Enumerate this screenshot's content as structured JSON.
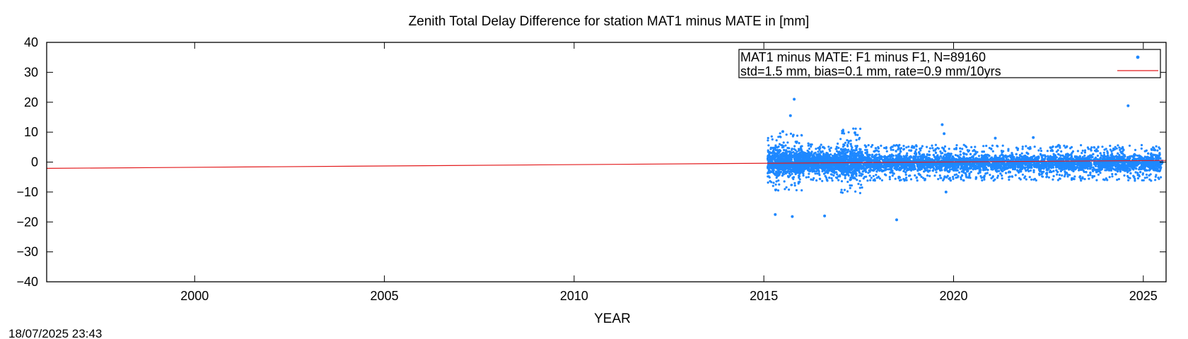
{
  "chart_data": {
    "type": "scatter",
    "title": "Zenith Total Delay Difference for station MAT1 minus MATE in [mm]",
    "xlabel": "YEAR",
    "ylabel": "",
    "xlim": [
      1996.1,
      2025.6
    ],
    "ylim": [
      -40,
      40
    ],
    "x_ticks": [
      2000,
      2005,
      2010,
      2015,
      2020,
      2025
    ],
    "y_ticks": [
      -40,
      -30,
      -20,
      -10,
      0,
      10,
      20,
      30,
      40
    ],
    "x_tick_labels": [
      "2000",
      "2005",
      "2010",
      "2015",
      "2020",
      "2025"
    ],
    "y_tick_labels": [
      "−40",
      "−30",
      "−20",
      "−10",
      "0",
      "10",
      "20",
      "30",
      "40"
    ],
    "grid": false,
    "legend_position": "top-right",
    "series": [
      {
        "name": "MAT1 minus MATE: F1 minus F1, N=89160",
        "marker": "point",
        "color": "#1e88ff",
        "x_range": [
          2015.1,
          2025.5
        ],
        "n": 89160,
        "bands": [
          {
            "x": [
              2015.1,
              2016.0
            ],
            "y": [
              -6,
              6
            ]
          },
          {
            "x": [
              2016.0,
              2017.0
            ],
            "y": [
              -4,
              4
            ]
          },
          {
            "x": [
              2017.0,
              2017.6
            ],
            "y": [
              -7,
              7
            ]
          },
          {
            "x": [
              2017.6,
              2025.5
            ],
            "y": [
              -4,
              3.5
            ]
          }
        ],
        "outliers": [
          {
            "x": 2015.3,
            "y": -17.5
          },
          {
            "x": 2015.75,
            "y": -18.2
          },
          {
            "x": 2015.8,
            "y": 21
          },
          {
            "x": 2015.7,
            "y": 15.5
          },
          {
            "x": 2016.6,
            "y": -18
          },
          {
            "x": 2018.5,
            "y": -19.3
          },
          {
            "x": 2019.7,
            "y": 12.5
          },
          {
            "x": 2019.75,
            "y": 9.5
          },
          {
            "x": 2019.8,
            "y": -10
          },
          {
            "x": 2024.6,
            "y": 18.8
          },
          {
            "x": 2017.4,
            "y": 9.8
          },
          {
            "x": 2021.1,
            "y": 8
          },
          {
            "x": 2022.1,
            "y": 8.2
          },
          {
            "x": 2015.5,
            "y": 10.2
          }
        ]
      },
      {
        "name": "std=1.5 mm, bias=0.1 mm, rate=0.9 mm/10yrs",
        "marker": "line",
        "color": "#e31a1c",
        "x": [
          1996.1,
          2025.6
        ],
        "y": [
          -2.1,
          0.55
        ]
      }
    ]
  },
  "timestamp": "18/07/2025 23:43",
  "colors": {
    "axis": "#000000",
    "points": "#1e88ff",
    "trend": "#e31a1c"
  }
}
